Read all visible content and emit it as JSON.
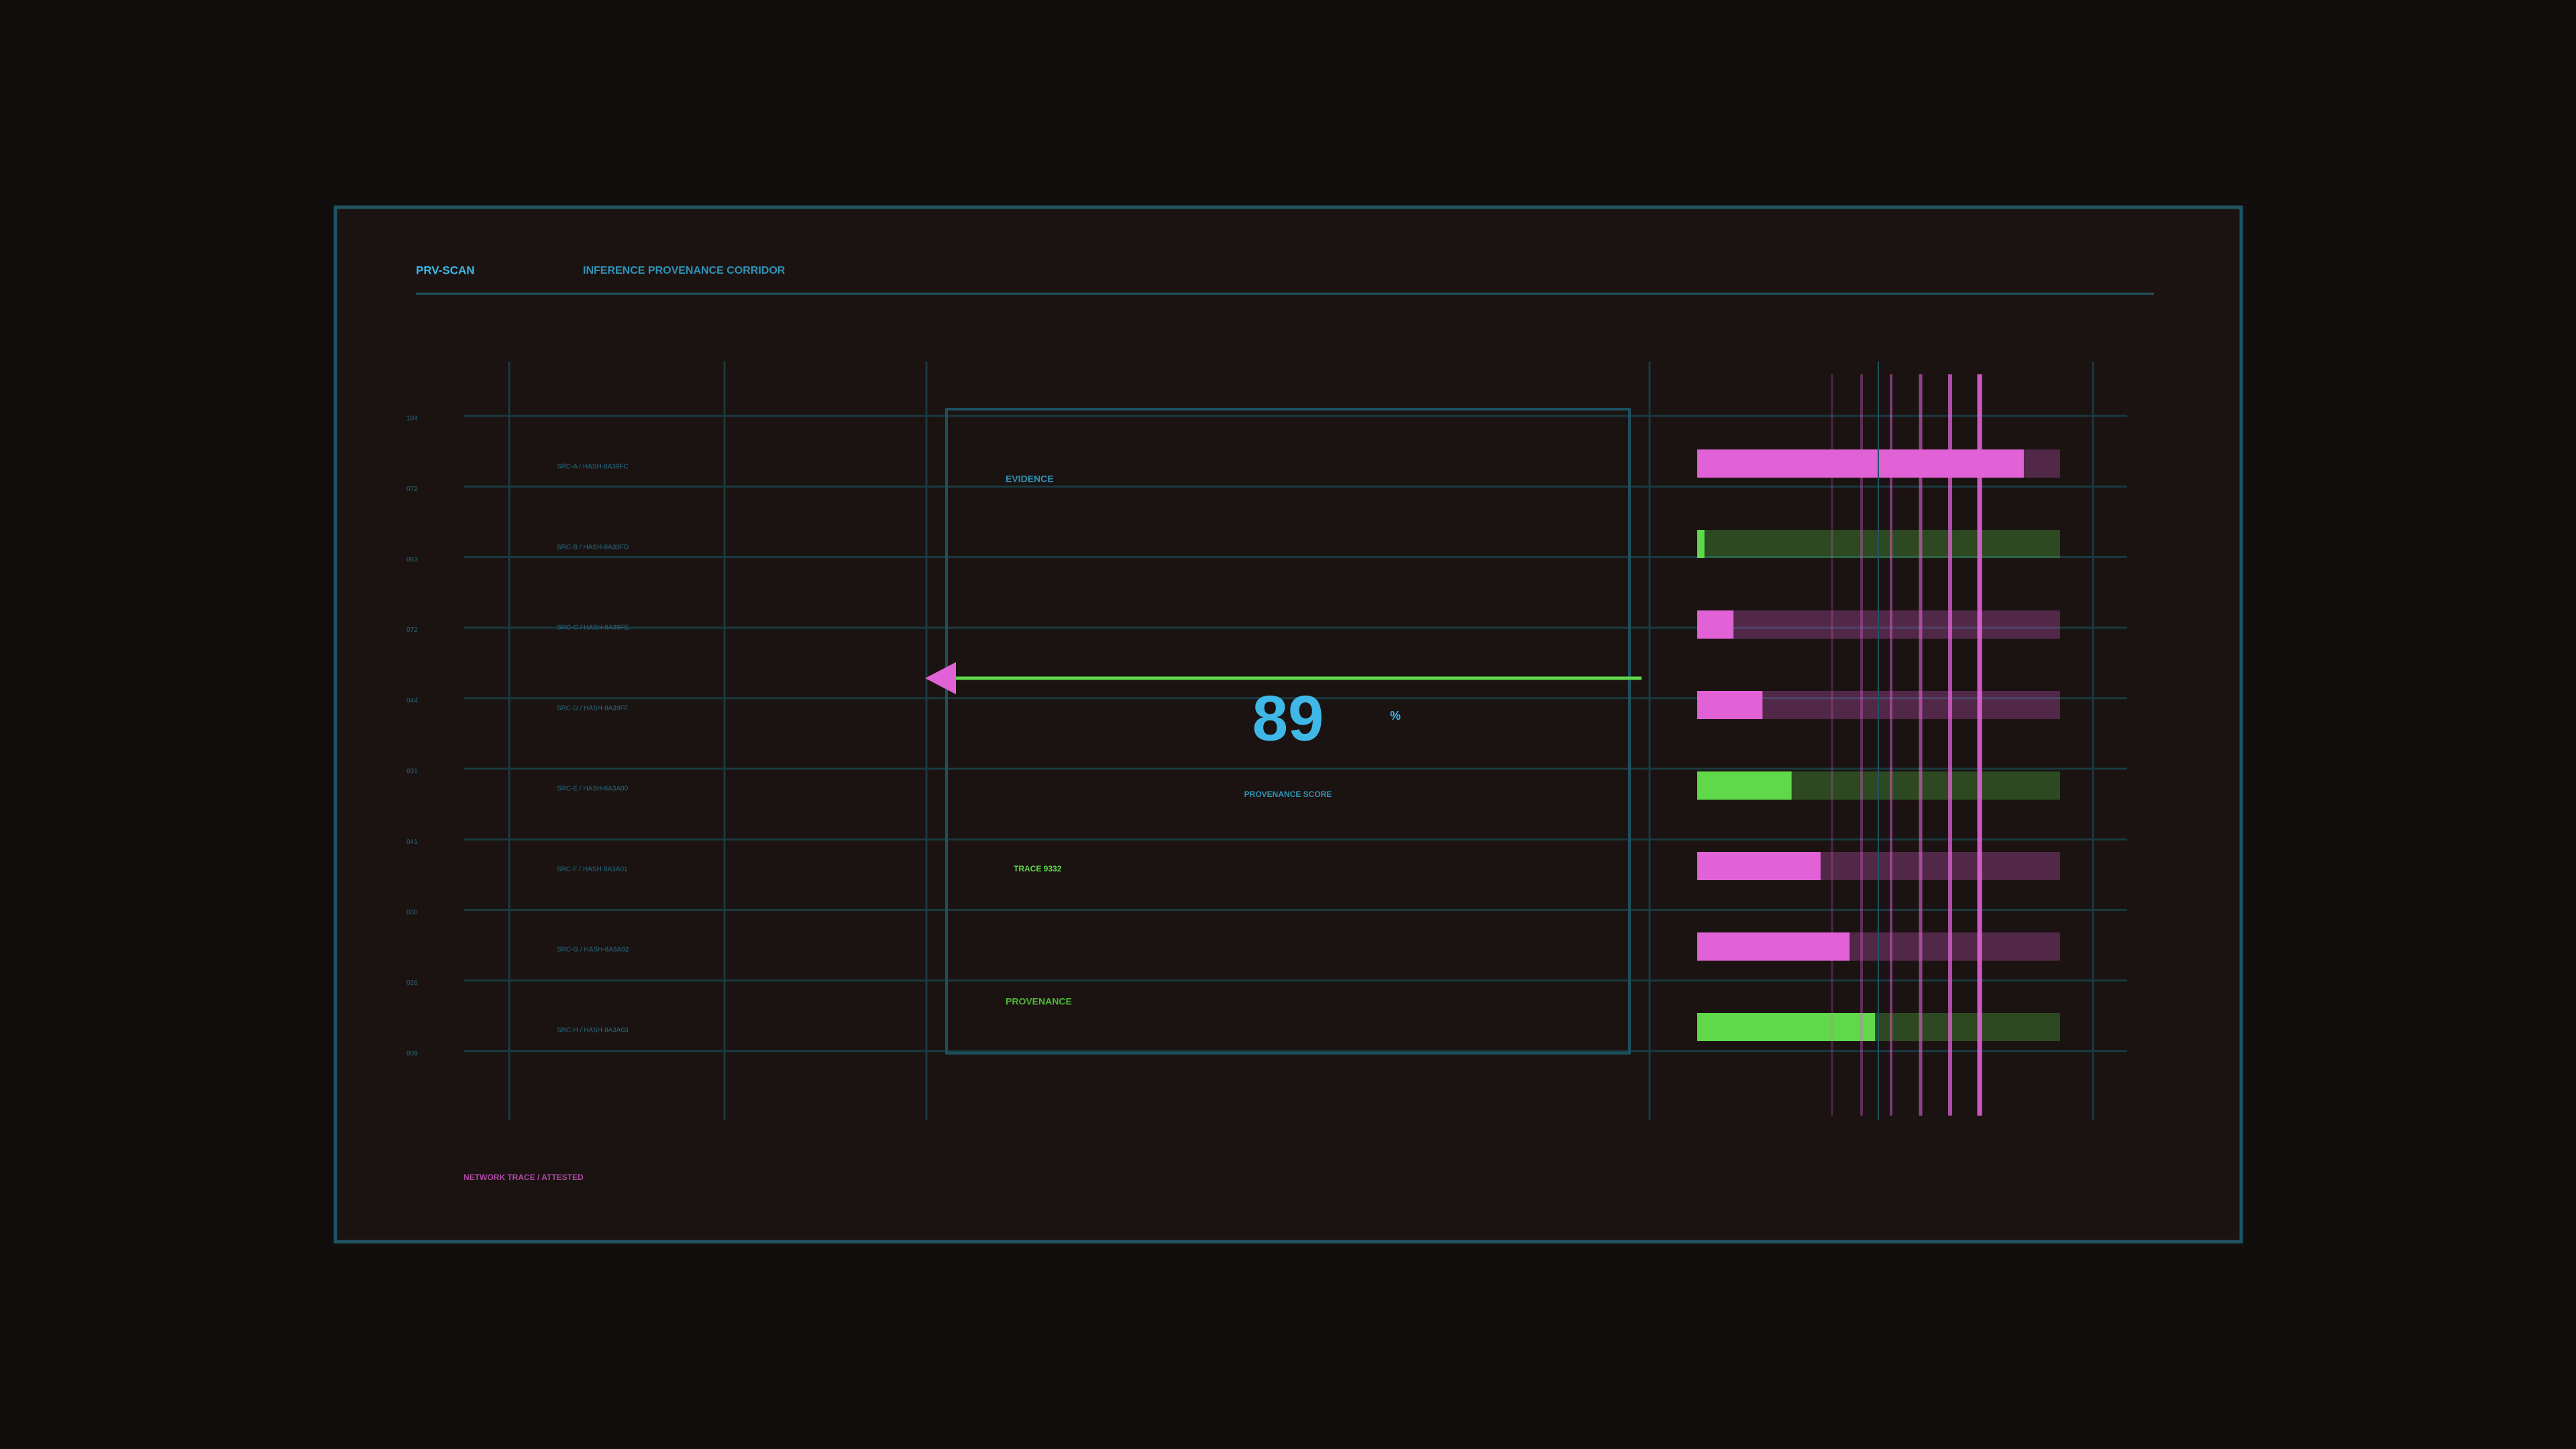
{
  "header": {
    "brand": "PRV-SCAN",
    "title": "INFERENCE PROVENANCE CORRIDOR"
  },
  "axis_labels": [
    "104",
    "072",
    "063",
    "072",
    "044",
    "031",
    "041",
    "030",
    "026",
    "009"
  ],
  "rows": [
    "SRC-A / HASH-8A39FC",
    "SRC-B / HASH-8A39FD",
    "SRC-C / HASH-8A39FE",
    "SRC-D / HASH-8A39FF",
    "SRC-E / HASH-8A3A00",
    "SRC-F / HASH-8A3A01",
    "SRC-G / HASH-8A3A02",
    "SRC-H / HASH-8A3A03"
  ],
  "panel": {
    "evidence": "EVIDENCE",
    "trace": "TRACE 9332",
    "provenance": "PROVENANCE"
  },
  "score": {
    "value": 89,
    "unit": "%",
    "label": "PROVENANCE SCORE"
  },
  "bars": {
    "xlim": [
      0,
      100
    ],
    "values": [
      90,
      2,
      10,
      18,
      26,
      34,
      42,
      49
    ],
    "colors": [
      "#e062d6",
      "#5fd84a",
      "#e062d6",
      "#e062d6",
      "#5fd84a",
      "#e062d6",
      "#e062d6",
      "#5fd84a"
    ]
  },
  "footer": "NETWORK TRACE / ATTESTED"
}
